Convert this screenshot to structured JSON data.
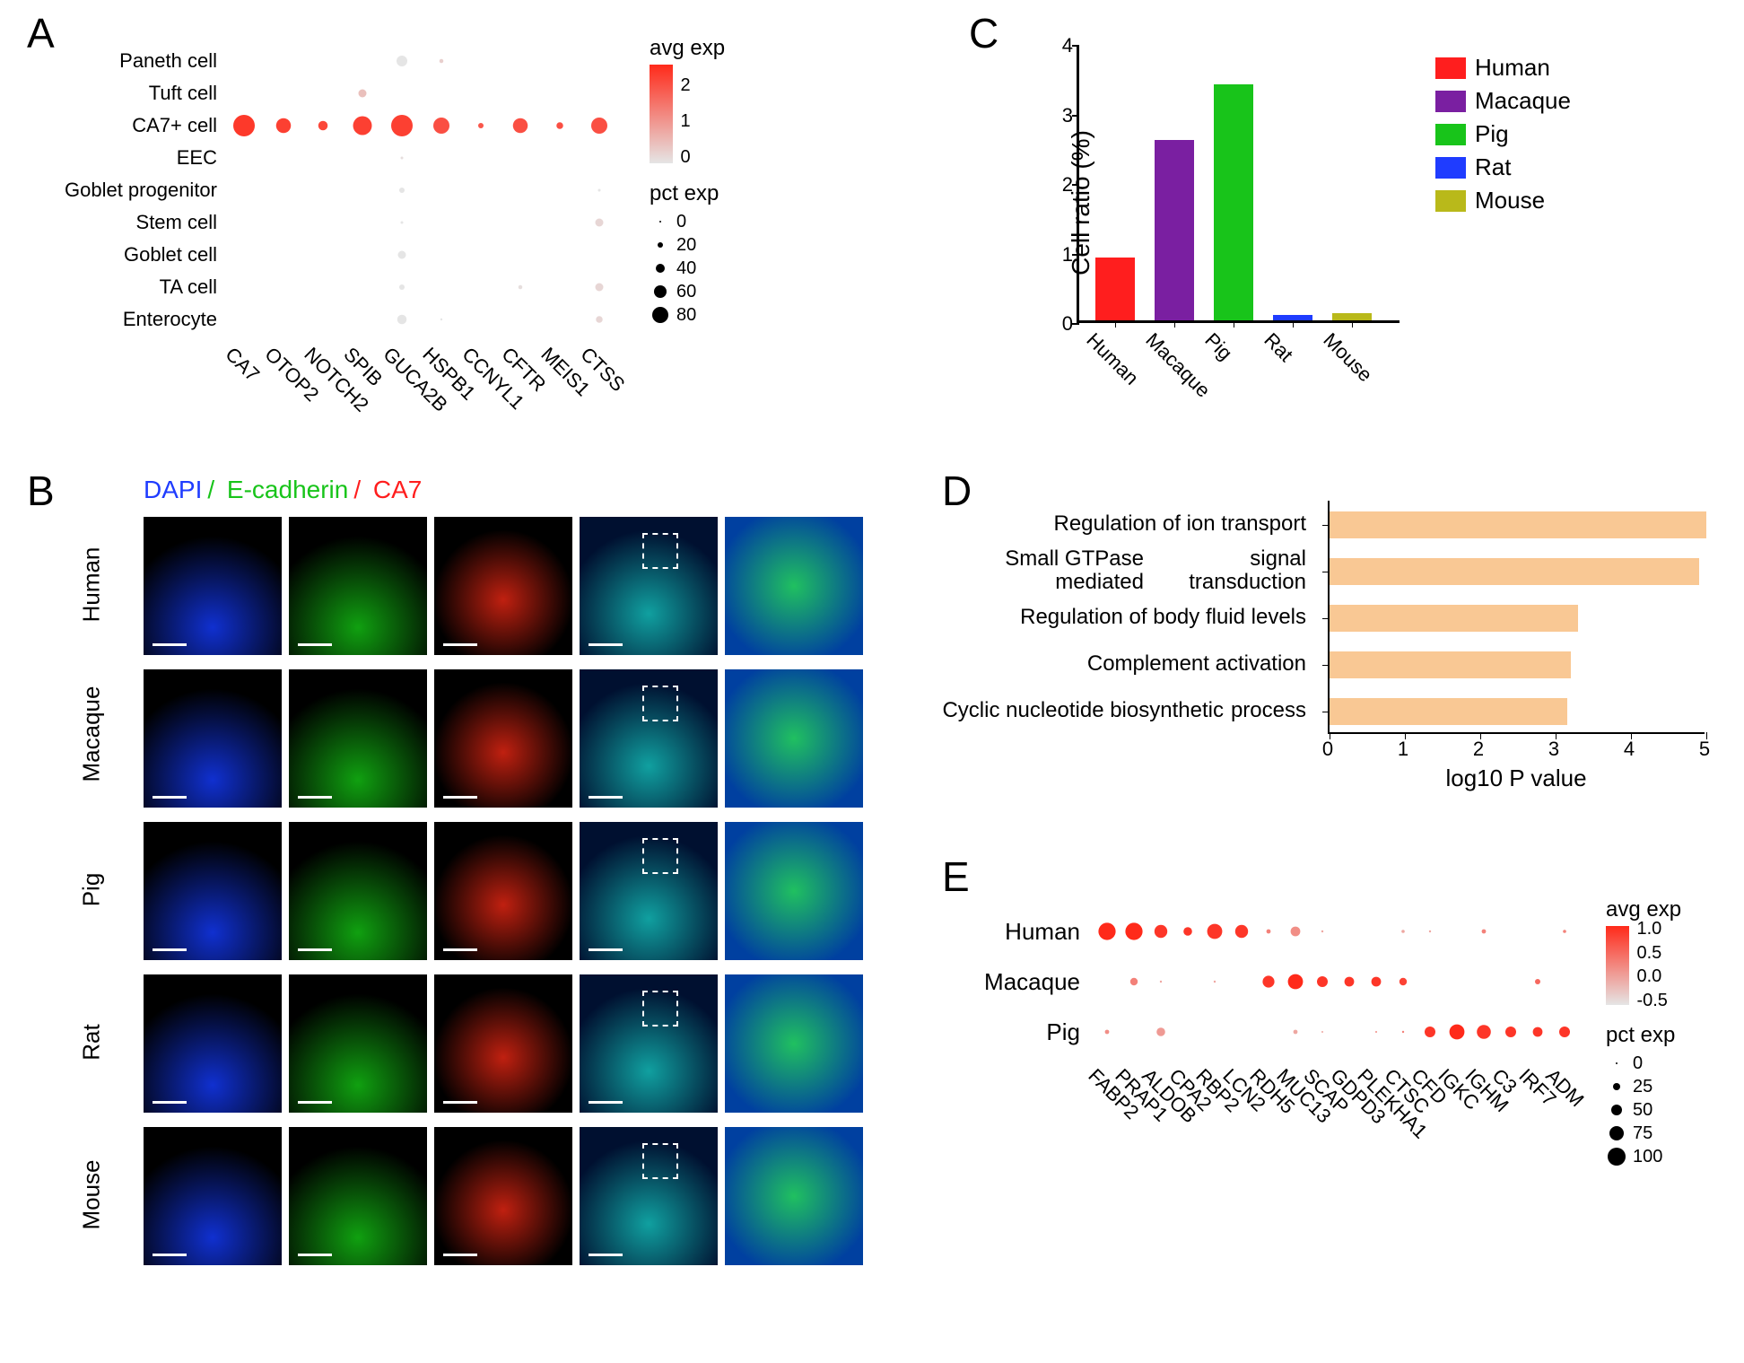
{
  "panelA": {
    "label": "A",
    "type": "dotplot",
    "cell_types": [
      "Paneth cell",
      "Tuft cell",
      "CA7+ cell",
      "EEC",
      "Goblet progenitor",
      "Stem cell",
      "Goblet cell",
      "TA cell",
      "Enterocyte"
    ],
    "genes": [
      "CA7",
      "OTOP2",
      "NOTCH2",
      "SPIB",
      "GUCA2B",
      "HSPB1",
      "CCNYL1",
      "CFTR",
      "MEIS1",
      "CTSS"
    ],
    "avg_exp_legend": {
      "title": "avg exp",
      "min": 0,
      "max": 2.5,
      "ticks": [
        0,
        1,
        2
      ],
      "min_color": "#e5e5e5",
      "max_color": "#ff2a1a"
    },
    "pct_exp_legend": {
      "title": "pct exp",
      "values": [
        0,
        20,
        40,
        60,
        80
      ],
      "radii": [
        1,
        3,
        5,
        7,
        9
      ]
    },
    "dots": [
      {
        "row": 0,
        "col": 4,
        "pct": 40,
        "exp": 0
      },
      {
        "row": 0,
        "col": 5,
        "pct": 15,
        "exp": 0.3
      },
      {
        "row": 1,
        "col": 3,
        "pct": 30,
        "exp": 0.5
      },
      {
        "row": 2,
        "col": 0,
        "pct": 80,
        "exp": 2.3
      },
      {
        "row": 2,
        "col": 1,
        "pct": 55,
        "exp": 2.2
      },
      {
        "row": 2,
        "col": 2,
        "pct": 35,
        "exp": 2.1
      },
      {
        "row": 2,
        "col": 3,
        "pct": 70,
        "exp": 2.2
      },
      {
        "row": 2,
        "col": 4,
        "pct": 80,
        "exp": 2.2
      },
      {
        "row": 2,
        "col": 5,
        "pct": 60,
        "exp": 2.0
      },
      {
        "row": 2,
        "col": 6,
        "pct": 20,
        "exp": 1.9
      },
      {
        "row": 2,
        "col": 7,
        "pct": 55,
        "exp": 2.0
      },
      {
        "row": 2,
        "col": 8,
        "pct": 25,
        "exp": 2.0
      },
      {
        "row": 2,
        "col": 9,
        "pct": 60,
        "exp": 2.0
      },
      {
        "row": 3,
        "col": 4,
        "pct": 10,
        "exp": 0.1
      },
      {
        "row": 4,
        "col": 4,
        "pct": 20,
        "exp": 0
      },
      {
        "row": 4,
        "col": 9,
        "pct": 10,
        "exp": 0
      },
      {
        "row": 5,
        "col": 4,
        "pct": 10,
        "exp": 0
      },
      {
        "row": 5,
        "col": 9,
        "pct": 30,
        "exp": 0.2
      },
      {
        "row": 6,
        "col": 4,
        "pct": 30,
        "exp": 0
      },
      {
        "row": 7,
        "col": 4,
        "pct": 20,
        "exp": 0
      },
      {
        "row": 7,
        "col": 7,
        "pct": 15,
        "exp": 0.1
      },
      {
        "row": 7,
        "col": 9,
        "pct": 30,
        "exp": 0.2
      },
      {
        "row": 8,
        "col": 4,
        "pct": 35,
        "exp": 0
      },
      {
        "row": 8,
        "col": 5,
        "pct": 8,
        "exp": 0
      },
      {
        "row": 8,
        "col": 9,
        "pct": 25,
        "exp": 0.2
      }
    ],
    "col_spacing": 44,
    "row_spacing": 36,
    "max_radius": 12
  },
  "panelB": {
    "label": "B",
    "channels": [
      {
        "name": "DAPI",
        "color": "#1f3cff"
      },
      {
        "name": "E-cadherin",
        "color": "#18c41a"
      },
      {
        "name": "CA7",
        "color": "#ff1e1e"
      }
    ],
    "divider": "/",
    "species": [
      "Human",
      "Macaque",
      "Pig",
      "Rat",
      "Mouse"
    ],
    "cell_bg": "#000000",
    "scalebar_color": "#ffffff"
  },
  "panelC": {
    "label": "C",
    "type": "bar",
    "ylabel": "Cell ratio (%)",
    "ylim": [
      0,
      4
    ],
    "ytick_step": 1,
    "categories": [
      "Human",
      "Macaque",
      "Pig",
      "Rat",
      "Mouse"
    ],
    "values": [
      0.9,
      2.6,
      3.4,
      0.08,
      0.1
    ],
    "colors": [
      "#ff1e1e",
      "#7a1fa1",
      "#18c41a",
      "#1f3cff",
      "#b9b91a"
    ],
    "legend_items": [
      "Human",
      "Macaque",
      "Pig",
      "Rat",
      "Mouse"
    ]
  },
  "panelD": {
    "label": "D",
    "type": "hbar",
    "terms": [
      "Regulation of ion transport",
      "Small GTPase mediated\nsignal transduction",
      "Regulation of body fluid levels",
      "Complement activation",
      "Cyclic nucleotide biosynthetic\nprocess"
    ],
    "values": [
      5.0,
      4.9,
      3.3,
      3.2,
      3.15
    ],
    "bar_color": "#f9c894",
    "xlabel": "log10 P value",
    "xlim": [
      0,
      5
    ],
    "xtick_step": 1
  },
  "panelE": {
    "label": "E",
    "type": "dotplot",
    "species": [
      "Human",
      "Macaque",
      "Pig"
    ],
    "genes": [
      "FABP2",
      "PRAP1",
      "ALDOB",
      "CPA2",
      "RBP2",
      "LCN2",
      "RDH5",
      "MUC13",
      "SCAP",
      "GDPD3",
      "PLEKHA1",
      "CTSC",
      "CFD",
      "IGKC",
      "IGHM",
      "C3",
      "IRF7",
      "ADM"
    ],
    "avg_exp_legend": {
      "title": "avg exp",
      "min": -0.5,
      "max": 1.0,
      "ticks": [
        -0.5,
        0.0,
        0.5,
        1.0
      ],
      "min_color": "#e5e5e5",
      "max_color": "#ff2a1a"
    },
    "pct_exp_legend": {
      "title": "pct exp",
      "values": [
        0,
        25,
        50,
        75,
        100
      ],
      "radii": [
        1,
        4,
        6,
        8,
        10
      ]
    },
    "dots": [
      {
        "row": 0,
        "col": 0,
        "pct": 80,
        "exp": 1.0
      },
      {
        "row": 0,
        "col": 1,
        "pct": 80,
        "exp": 1.0
      },
      {
        "row": 0,
        "col": 2,
        "pct": 60,
        "exp": 0.9
      },
      {
        "row": 0,
        "col": 3,
        "pct": 40,
        "exp": 0.9
      },
      {
        "row": 0,
        "col": 4,
        "pct": 70,
        "exp": 0.9
      },
      {
        "row": 0,
        "col": 5,
        "pct": 60,
        "exp": 0.9
      },
      {
        "row": 0,
        "col": 6,
        "pct": 20,
        "exp": 0.3
      },
      {
        "row": 0,
        "col": 7,
        "pct": 45,
        "exp": 0.2
      },
      {
        "row": 0,
        "col": 8,
        "pct": 10,
        "exp": 0
      },
      {
        "row": 0,
        "col": 11,
        "pct": 15,
        "exp": 0.0
      },
      {
        "row": 0,
        "col": 12,
        "pct": 10,
        "exp": 0
      },
      {
        "row": 0,
        "col": 14,
        "pct": 20,
        "exp": 0.3
      },
      {
        "row": 0,
        "col": 17,
        "pct": 15,
        "exp": 0.3
      },
      {
        "row": 1,
        "col": 1,
        "pct": 35,
        "exp": 0.3
      },
      {
        "row": 1,
        "col": 2,
        "pct": 10,
        "exp": 0
      },
      {
        "row": 1,
        "col": 4,
        "pct": 10,
        "exp": 0
      },
      {
        "row": 1,
        "col": 6,
        "pct": 55,
        "exp": 0.9
      },
      {
        "row": 1,
        "col": 7,
        "pct": 70,
        "exp": 1.0
      },
      {
        "row": 1,
        "col": 8,
        "pct": 50,
        "exp": 0.9
      },
      {
        "row": 1,
        "col": 9,
        "pct": 45,
        "exp": 0.9
      },
      {
        "row": 1,
        "col": 10,
        "pct": 45,
        "exp": 0.9
      },
      {
        "row": 1,
        "col": 11,
        "pct": 35,
        "exp": 0.8
      },
      {
        "row": 1,
        "col": 16,
        "pct": 25,
        "exp": 0.5
      },
      {
        "row": 2,
        "col": 0,
        "pct": 20,
        "exp": 0.2
      },
      {
        "row": 2,
        "col": 2,
        "pct": 40,
        "exp": 0.1
      },
      {
        "row": 2,
        "col": 7,
        "pct": 20,
        "exp": 0
      },
      {
        "row": 2,
        "col": 8,
        "pct": 8,
        "exp": 0
      },
      {
        "row": 2,
        "col": 10,
        "pct": 8,
        "exp": 0.2
      },
      {
        "row": 2,
        "col": 11,
        "pct": 10,
        "exp": 0.3
      },
      {
        "row": 2,
        "col": 12,
        "pct": 50,
        "exp": 0.9
      },
      {
        "row": 2,
        "col": 13,
        "pct": 70,
        "exp": 1.0
      },
      {
        "row": 2,
        "col": 14,
        "pct": 65,
        "exp": 0.9
      },
      {
        "row": 2,
        "col": 15,
        "pct": 50,
        "exp": 0.9
      },
      {
        "row": 2,
        "col": 16,
        "pct": 45,
        "exp": 0.9
      },
      {
        "row": 2,
        "col": 17,
        "pct": 50,
        "exp": 0.9
      }
    ],
    "col_spacing": 30,
    "row_spacing": 56,
    "max_radius": 12
  }
}
